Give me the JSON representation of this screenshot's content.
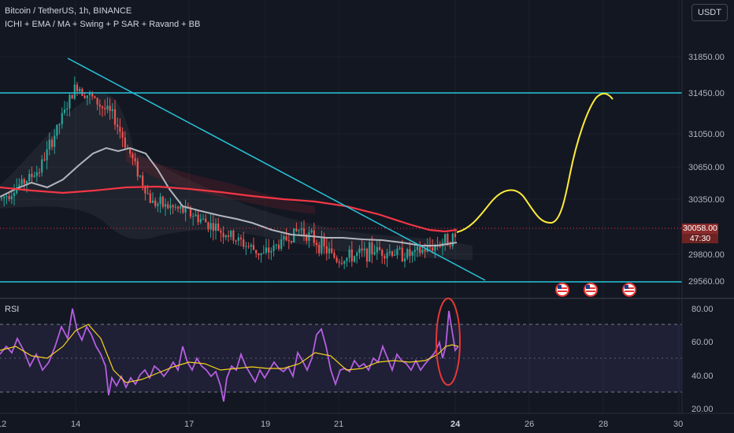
{
  "header": {
    "symbol_line": "Bitcoin / TetherUS, 1h, BINANCE",
    "indicators_line": "ICHI + EMA / MA + Swing + P SAR + Ravand + BB",
    "currency_button": "USDT"
  },
  "price_panel": {
    "current_price": "30058.00",
    "countdown": "47:30",
    "y_ticks": [
      "31850.00",
      "31450.00",
      "31050.00",
      "30650.00",
      "30350.00",
      "29800.00",
      "29560.00"
    ],
    "resistance_level": 31450,
    "support_level": 29560
  },
  "rsi_panel": {
    "label": "RSI",
    "y_ticks": [
      "80.00",
      "60.00",
      "40.00",
      "20.00"
    ]
  },
  "x_axis": {
    "ticks": [
      "12",
      "14",
      "17",
      "19",
      "21",
      "24",
      "26",
      "28",
      "30"
    ]
  },
  "colors": {
    "background": "#131722",
    "trendline": "#26c6da",
    "ema_red": "#f23645",
    "ma_white": "#b2b5be",
    "projection": "#ffeb3b",
    "rsi_line": "#b45fe0",
    "rsi_ma": "#f5d31e",
    "up_candle": "#26a69a",
    "down_candle": "#ef5350"
  },
  "chart_data": {
    "type": "candlestick",
    "x_range": [
      "12",
      "30"
    ],
    "y_range": [
      29500,
      32300
    ],
    "approx_price_path": [
      {
        "x": "12",
        "y": 30430
      },
      {
        "x": "13",
        "y": 30700
      },
      {
        "x": "14",
        "y": 31500
      },
      {
        "x": "15",
        "y": 31200
      },
      {
        "x": "16",
        "y": 30400
      },
      {
        "x": "17",
        "y": 30300
      },
      {
        "x": "18",
        "y": 30100
      },
      {
        "x": "19",
        "y": 29900
      },
      {
        "x": "20",
        "y": 30150
      },
      {
        "x": "21",
        "y": 29850
      },
      {
        "x": "22",
        "y": 29950
      },
      {
        "x": "23",
        "y": 29900
      },
      {
        "x": "24",
        "y": 30058
      }
    ],
    "ema_200_path": [
      {
        "x": "12",
        "y": 30480
      },
      {
        "x": "17",
        "y": 30450
      },
      {
        "x": "21",
        "y": 30300
      },
      {
        "x": "24",
        "y": 30050
      }
    ],
    "projection_path": [
      {
        "x": "24",
        "y": 30058
      },
      {
        "x": "25",
        "y": 30470
      },
      {
        "x": "26",
        "y": 30150
      },
      {
        "x": "27",
        "y": 31050
      },
      {
        "x": "28",
        "y": 31450
      }
    ],
    "rsi_y_range": [
      15,
      90
    ]
  }
}
